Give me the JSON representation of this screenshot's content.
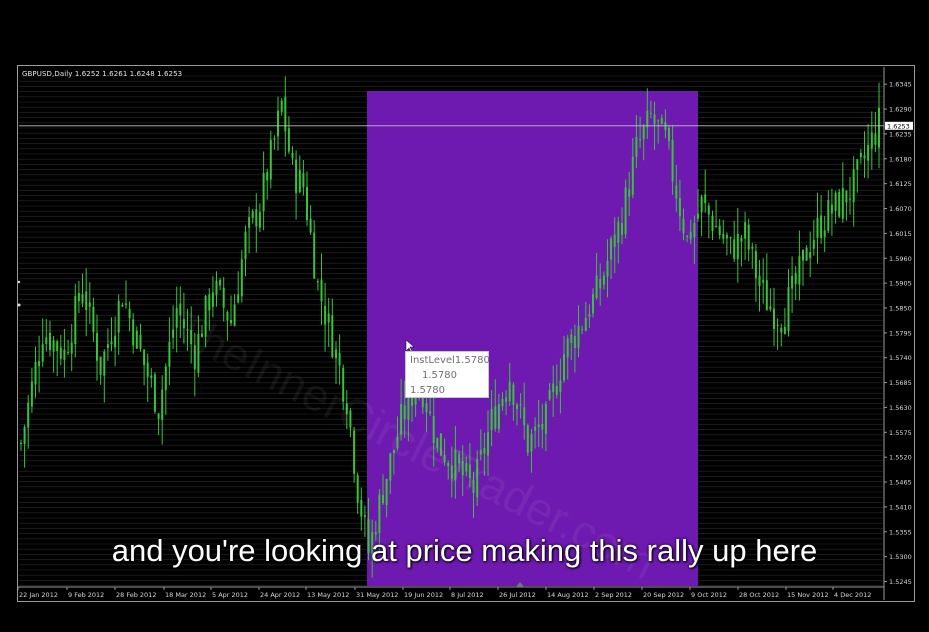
{
  "header": {
    "symbol_line": "GBPUSD,Daily  1.6252 1.6261 1.6248 1.6253"
  },
  "tooltip": {
    "line1": "InstLevel1.5780",
    "line2": "1.5780",
    "line3": "1.5780"
  },
  "caption": {
    "text": "and you're looking at price making this rally up here"
  },
  "watermark": {
    "text": "TheInnerCircleTrader.com"
  },
  "colors": {
    "candles": "#39c339",
    "highlight": "#6e1ab0",
    "price_marker_bg": "#ffffff"
  },
  "chart_data": {
    "type": "candlestick",
    "title": "GBPUSD,Daily",
    "current_price": "1.6253",
    "quote_values": {
      "open": "1.6252",
      "high": "1.6261",
      "low": "1.6248",
      "close": "1.6253"
    },
    "y_ticks": [
      "1.6345",
      "1.6290",
      "1.6235",
      "1.6180",
      "1.6125",
      "1.6070",
      "1.6015",
      "1.5960",
      "1.5905",
      "1.5850",
      "1.5795",
      "1.5740",
      "1.5685",
      "1.5630",
      "1.5575",
      "1.5520",
      "1.5465",
      "1.5410",
      "1.5355",
      "1.5300",
      "1.5245"
    ],
    "x_ticks": [
      "22 Jan 2012",
      "9 Feb 2012",
      "28 Feb 2012",
      "18 Mar 2012",
      "5 Apr 2012",
      "24 Apr 2012",
      "13 May 2012",
      "31 May 2012",
      "19 Jun 2012",
      "8 Jul 2012",
      "26 Jul 2012",
      "14 Aug 2012",
      "2 Sep 2012",
      "20 Sep 2012",
      "9 Oct 2012",
      "28 Oct 2012",
      "15 Nov 2012",
      "4 Dec 2012"
    ],
    "ylim": [
      1.5235,
      1.6372
    ],
    "highlight_range": {
      "from": "31 May 2012",
      "to": "9 Oct 2012"
    },
    "horizontal_level": 1.6253,
    "price_path": [
      [
        0,
        1.555
      ],
      [
        6,
        1.58
      ],
      [
        12,
        1.575
      ],
      [
        17,
        1.59
      ],
      [
        22,
        1.572
      ],
      [
        28,
        1.588
      ],
      [
        33,
        1.575
      ],
      [
        38,
        1.563
      ],
      [
        43,
        1.585
      ],
      [
        48,
        1.575
      ],
      [
        53,
        1.59
      ],
      [
        58,
        1.582
      ],
      [
        62,
        1.6
      ],
      [
        66,
        1.608
      ],
      [
        70,
        1.622
      ],
      [
        72,
        1.63
      ],
      [
        75,
        1.615
      ],
      [
        78,
        1.612
      ],
      [
        82,
        1.59
      ],
      [
        86,
        1.578
      ],
      [
        90,
        1.565
      ],
      [
        93,
        1.545
      ],
      [
        96,
        1.531
      ],
      [
        100,
        1.545
      ],
      [
        105,
        1.56
      ],
      [
        110,
        1.57
      ],
      [
        115,
        1.555
      ],
      [
        120,
        1.55
      ],
      [
        125,
        1.545
      ],
      [
        130,
        1.56
      ],
      [
        135,
        1.57
      ],
      [
        140,
        1.555
      ],
      [
        145,
        1.56
      ],
      [
        150,
        1.575
      ],
      [
        155,
        1.582
      ],
      [
        160,
        1.59
      ],
      [
        163,
        1.598
      ],
      [
        166,
        1.605
      ],
      [
        170,
        1.62
      ],
      [
        174,
        1.627
      ],
      [
        178,
        1.622
      ],
      [
        181,
        1.611
      ],
      [
        184,
        1.6
      ],
      [
        188,
        1.608
      ],
      [
        192,
        1.603
      ],
      [
        196,
        1.598
      ],
      [
        200,
        1.601
      ],
      [
        204,
        1.59
      ],
      [
        207,
        1.585
      ],
      [
        210,
        1.583
      ],
      [
        214,
        1.59
      ],
      [
        218,
        1.6
      ],
      [
        222,
        1.605
      ],
      [
        226,
        1.608
      ],
      [
        230,
        1.612
      ],
      [
        234,
        1.62
      ],
      [
        237,
        1.626
      ]
    ]
  }
}
